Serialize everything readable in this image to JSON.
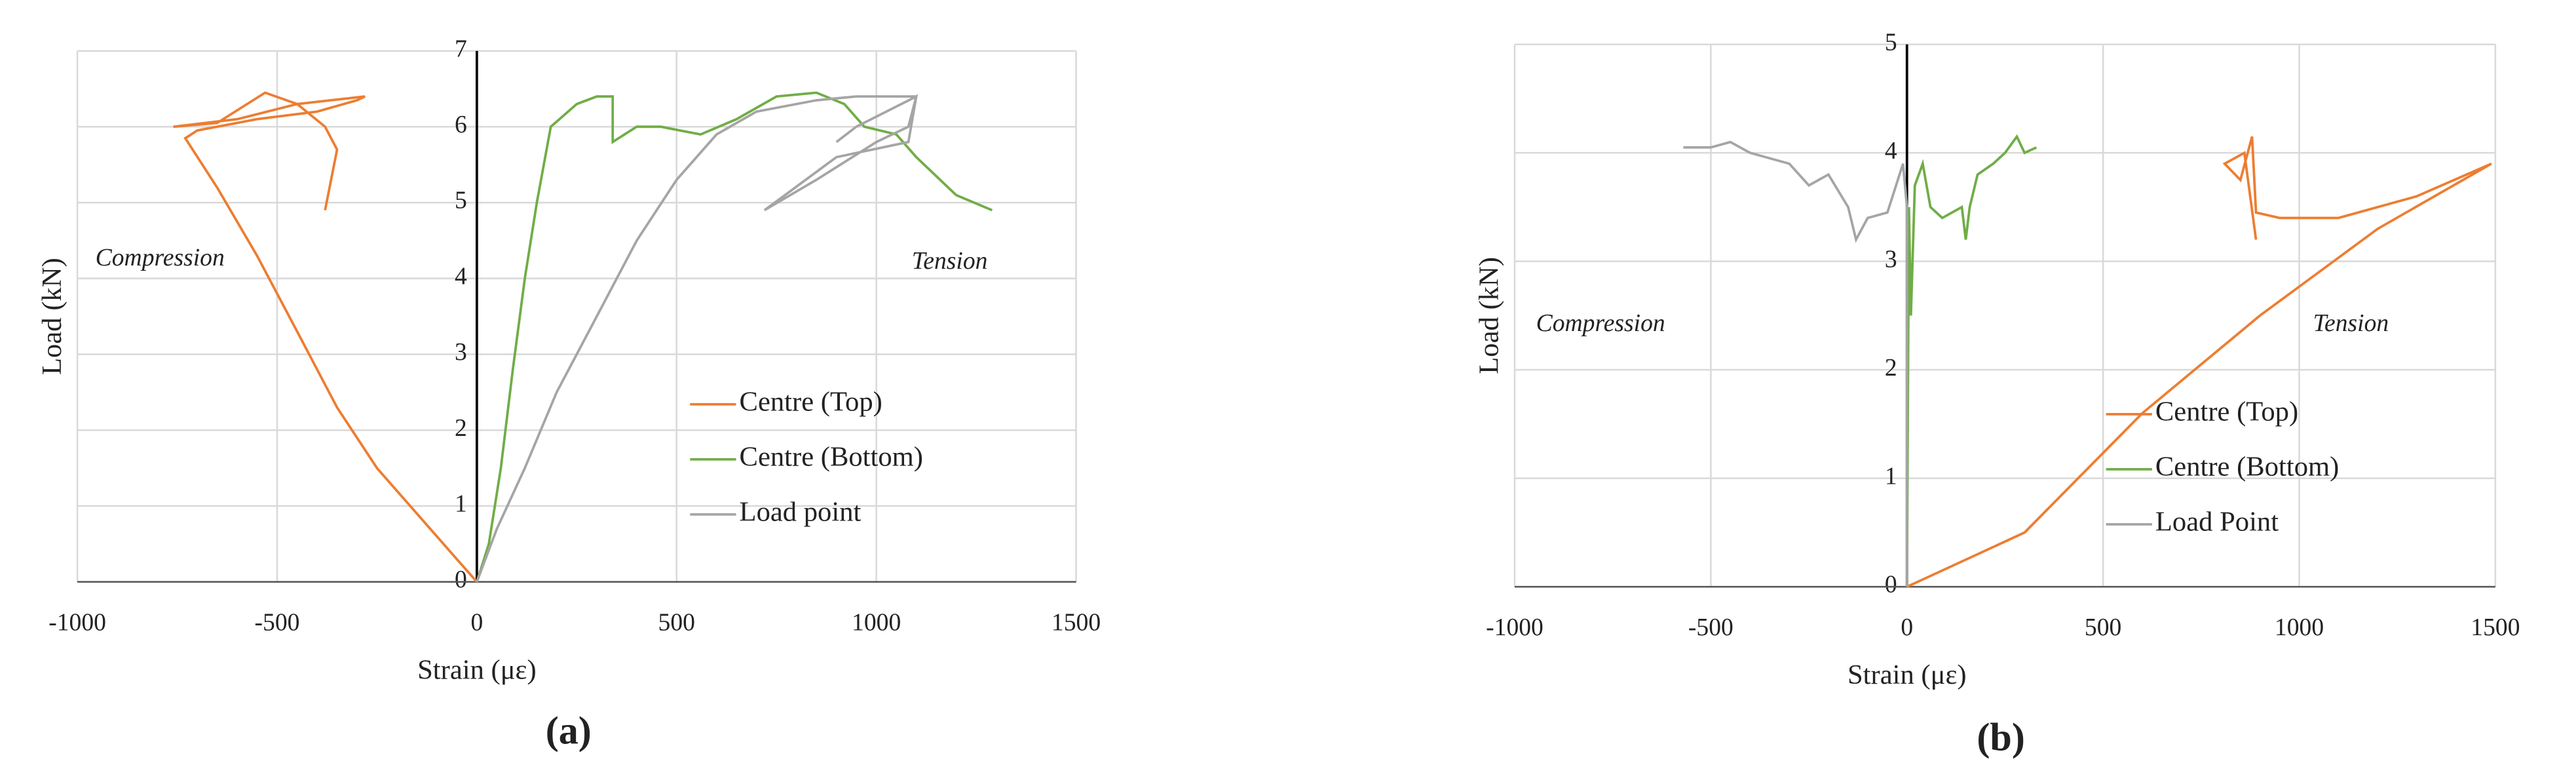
{
  "chart_data": [
    {
      "type": "line",
      "panel_label": "(a)",
      "xlabel": "Strain (με)",
      "ylabel": "Load (kN)",
      "annotations": [
        "Compression",
        "Tension"
      ],
      "xlim": [
        -1000,
        1500
      ],
      "xticks": [
        -1000,
        -500,
        0,
        500,
        1000,
        1500
      ],
      "ylim": [
        0,
        7
      ],
      "yticks": [
        0,
        1,
        2,
        3,
        4,
        5,
        6,
        7
      ],
      "grid": true,
      "legend": "right",
      "series": [
        {
          "name": "Centre (Top)",
          "color": "#ed7d31",
          "x": [
            0,
            -50,
            -150,
            -250,
            -350,
            -450,
            -550,
            -650,
            -730,
            -700,
            -550,
            -400,
            -300,
            -280,
            -450,
            -600,
            -760,
            -650,
            -530,
            -450,
            -380,
            -350,
            -380
          ],
          "values": [
            0,
            0.3,
            0.9,
            1.5,
            2.3,
            3.3,
            4.3,
            5.2,
            5.85,
            5.95,
            6.1,
            6.2,
            6.35,
            6.4,
            6.3,
            6.1,
            6.0,
            6.05,
            6.45,
            6.3,
            6.0,
            5.7,
            4.9
          ]
        },
        {
          "name": "Centre (Bottom)",
          "color": "#70ad47",
          "x": [
            0,
            30,
            60,
            90,
            120,
            150,
            185,
            250,
            300,
            340,
            340,
            400,
            460,
            560,
            650,
            750,
            850,
            920,
            970,
            1050,
            1100,
            1200,
            1290
          ],
          "values": [
            0,
            0.5,
            1.5,
            2.8,
            4,
            5,
            6,
            6.3,
            6.4,
            6.4,
            5.8,
            6.0,
            6.0,
            5.9,
            6.1,
            6.4,
            6.45,
            6.3,
            6.0,
            5.9,
            5.6,
            5.1,
            4.9
          ]
        },
        {
          "name": "Load point",
          "color": "#a5a5a5",
          "x": [
            0,
            50,
            120,
            200,
            300,
            400,
            500,
            600,
            700,
            850,
            950,
            1080,
            1100,
            1080,
            900,
            720,
            850,
            1000,
            1080,
            1100,
            950,
            900
          ],
          "values": [
            0,
            0.7,
            1.5,
            2.5,
            3.5,
            4.5,
            5.3,
            5.9,
            6.2,
            6.35,
            6.4,
            6.4,
            6.4,
            5.8,
            5.6,
            4.9,
            5.3,
            5.8,
            6.0,
            6.4,
            6.0,
            5.8
          ]
        }
      ]
    },
    {
      "type": "line",
      "panel_label": "(b)",
      "xlabel": "Strain (με)",
      "ylabel": "Load (kN)",
      "annotations": [
        "Compression",
        "Tension"
      ],
      "xlim": [
        -1000,
        1500
      ],
      "xticks": [
        -1000,
        -500,
        0,
        500,
        1000,
        1500
      ],
      "ylim": [
        0,
        5
      ],
      "yticks": [
        0,
        1,
        2,
        3,
        4,
        5
      ],
      "grid": true,
      "legend": "right",
      "series": [
        {
          "name": "Centre (Top)",
          "color": "#ed7d31",
          "x": [
            0,
            300,
            600,
            900,
            1200,
            1490,
            1300,
            1100,
            950,
            890,
            880,
            850,
            810,
            860,
            890
          ],
          "values": [
            0,
            0.5,
            1.6,
            2.5,
            3.3,
            3.9,
            3.6,
            3.4,
            3.4,
            3.45,
            4.15,
            3.75,
            3.9,
            4.0,
            3.2
          ]
        },
        {
          "name": "Centre (Bottom)",
          "color": "#70ad47",
          "x": [
            0,
            5,
            10,
            20,
            40,
            60,
            90,
            140,
            150,
            160,
            180,
            220,
            250,
            280,
            300,
            330
          ],
          "values": [
            0,
            3.5,
            2.5,
            3.7,
            3.9,
            3.5,
            3.4,
            3.5,
            3.2,
            3.5,
            3.8,
            3.9,
            4.0,
            4.15,
            4.0,
            4.05
          ]
        },
        {
          "name": "Load Point",
          "color": "#a5a5a5",
          "x": [
            -570,
            -500,
            -450,
            -400,
            -300,
            -250,
            -200,
            -150,
            -130,
            -100,
            -50,
            -10,
            0,
            0
          ],
          "values": [
            4.05,
            4.05,
            4.1,
            4.0,
            3.9,
            3.7,
            3.8,
            3.5,
            3.2,
            3.4,
            3.45,
            3.9,
            3.5,
            0
          ]
        }
      ]
    }
  ]
}
